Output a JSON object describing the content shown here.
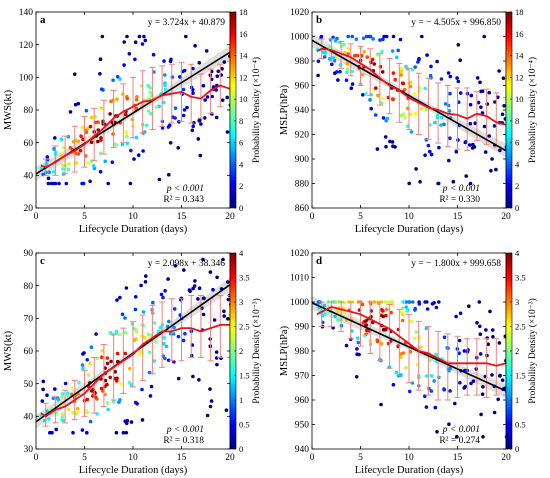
{
  "figure": {
    "colorbar_colors": [
      "#000080",
      "#0000ff",
      "#0080ff",
      "#00ffff",
      "#80ff80",
      "#ffff00",
      "#ff8000",
      "#ff0000",
      "#800000"
    ]
  },
  "chart_data": [
    {
      "panel": "a",
      "type": "scatter",
      "xlabel": "Lifecycle Duration (days)",
      "ylabel": "MWS(kt)",
      "xlim": [
        0,
        20
      ],
      "ylim": [
        20,
        140
      ],
      "xticks": [
        0,
        5,
        10,
        15,
        20
      ],
      "yticks": [
        20,
        40,
        60,
        80,
        100,
        120,
        140
      ],
      "equation": "y = 3.724x + 40.879",
      "pvalue": "p < 0.001",
      "r2": "R² = 0.343",
      "regression": {
        "slope": 3.724,
        "intercept": 40.879
      },
      "mean_line": {
        "x": [
          0.5,
          1,
          2,
          3,
          4,
          5,
          6,
          7,
          8,
          9,
          10,
          11,
          12,
          13,
          14,
          15,
          16,
          17,
          18,
          19,
          20
        ],
        "y": [
          46,
          45,
          48,
          52,
          55,
          59,
          64,
          69,
          75,
          79,
          82,
          85,
          86,
          89,
          90,
          91,
          88,
          87,
          92,
          95,
          93
        ]
      },
      "error_bars": {
        "x": [
          1,
          2,
          3,
          4,
          5,
          6,
          7,
          8,
          9,
          10,
          11,
          12,
          13,
          14,
          15,
          16,
          17,
          18,
          19,
          20
        ],
        "lower": [
          40,
          40,
          41,
          42,
          45,
          49,
          53,
          57,
          60,
          63,
          66,
          68,
          70,
          72,
          73,
          72,
          75,
          78,
          82,
          80
        ],
        "upper": [
          50,
          58,
          64,
          70,
          76,
          81,
          86,
          92,
          96,
          100,
          104,
          106,
          107,
          108,
          109,
          108,
          102,
          105,
          108,
          110
        ]
      },
      "points": {
        "y_min": 35,
        "y_max": 125,
        "x_min": 1,
        "x_max": 20
      },
      "colorbar": {
        "label": "Probability Density (×10⁻⁴)",
        "min": 0,
        "max": 18,
        "ticks": [
          0,
          2,
          4,
          6,
          8,
          10,
          12,
          14,
          16,
          18
        ]
      }
    },
    {
      "panel": "b",
      "type": "scatter",
      "xlabel": "Lifecycle Duration (days)",
      "ylabel": "MSLP(hPa)",
      "xlim": [
        0,
        20
      ],
      "ylim": [
        860,
        1020
      ],
      "xticks": [
        0,
        5,
        10,
        15,
        20
      ],
      "yticks": [
        860,
        880,
        900,
        920,
        940,
        960,
        980,
        1000,
        1020
      ],
      "equation": "y = − 4.505x + 996.850",
      "pvalue": "p < 0.001",
      "r2": "R² = 0.330",
      "regression": {
        "slope": -4.505,
        "intercept": 996.85
      },
      "mean_line": {
        "x": [
          0.5,
          1,
          2,
          3,
          4,
          5,
          6,
          7,
          8,
          9,
          10,
          11,
          12,
          13,
          14,
          15,
          16,
          17,
          18,
          19,
          20
        ],
        "y": [
          988,
          990,
          989,
          986,
          983,
          978,
          973,
          966,
          960,
          956,
          950,
          946,
          942,
          940,
          937,
          936,
          933,
          937,
          935,
          930,
          928
        ]
      },
      "error_bars": {
        "x": [
          1,
          2,
          3,
          4,
          5,
          6,
          7,
          8,
          9,
          10,
          11,
          12,
          13,
          14,
          15,
          16,
          17,
          18,
          19,
          20
        ],
        "lower": [
          982,
          980,
          974,
          968,
          960,
          952,
          944,
          937,
          930,
          924,
          920,
          916,
          913,
          910,
          908,
          907,
          915,
          912,
          910,
          908
        ],
        "upper": [
          998,
          998,
          996,
          994,
          992,
          990,
          986,
          982,
          978,
          974,
          970,
          966,
          962,
          960,
          958,
          958,
          955,
          957,
          954,
          950
        ]
      },
      "points": {
        "y_min": 880,
        "y_max": 1000,
        "x_min": 1,
        "x_max": 20
      },
      "colorbar": {
        "label": "Probability Density (×10⁻⁴)",
        "min": 0,
        "max": 18,
        "ticks": [
          0,
          2,
          4,
          6,
          8,
          10,
          12,
          14,
          16,
          18
        ]
      }
    },
    {
      "panel": "c",
      "type": "scatter",
      "xlabel": "Lifecycle Duration (days)",
      "ylabel": "MWS(kt)",
      "xlim": [
        0,
        20
      ],
      "ylim": [
        30,
        90
      ],
      "xticks": [
        0,
        5,
        10,
        15,
        20
      ],
      "yticks": [
        30,
        40,
        50,
        60,
        70,
        80,
        90
      ],
      "equation": "y = 2.098x + 38.346",
      "pvalue": "p < 0.001",
      "r2": "R² = 0.318",
      "regression": {
        "slope": 2.098,
        "intercept": 38.346
      },
      "mean_line": {
        "x": [
          0.5,
          1,
          2,
          3,
          4,
          5,
          6,
          7,
          8,
          9,
          10,
          11,
          12,
          13,
          14,
          15,
          16,
          17,
          18,
          19,
          20
        ],
        "y": [
          41,
          40,
          42,
          43,
          45,
          47,
          50,
          53,
          55,
          57,
          59,
          62,
          64,
          66,
          66,
          67,
          67,
          66,
          67,
          68,
          68
        ]
      },
      "error_bars": {
        "x": [
          1,
          2,
          3,
          4,
          5,
          6,
          7,
          8,
          9,
          10,
          11,
          12,
          13,
          14,
          15,
          16,
          17,
          18,
          19,
          20
        ],
        "lower": [
          37,
          38,
          38,
          39,
          40,
          41,
          43,
          45,
          47,
          49,
          51,
          53,
          55,
          57,
          57,
          58,
          58,
          57,
          58,
          58
        ],
        "upper": [
          44,
          46,
          48,
          51,
          54,
          58,
          62,
          65,
          67,
          69,
          71,
          74,
          75,
          76,
          76,
          77,
          77,
          76,
          77,
          77
        ]
      },
      "points": {
        "y_min": 35,
        "y_max": 88,
        "x_min": 1,
        "x_max": 20
      },
      "colorbar": {
        "label": "Probability Density (×10⁻³)",
        "min": 0,
        "max": 4,
        "ticks": [
          0,
          0.5,
          1,
          1.5,
          2,
          2.5,
          3,
          3.5,
          4
        ]
      }
    },
    {
      "panel": "d",
      "type": "scatter",
      "xlabel": "Lifecycle Duration (days)",
      "ylabel": "MSLP(hPa)",
      "xlim": [
        0,
        20
      ],
      "ylim": [
        940,
        1020
      ],
      "xticks": [
        0,
        5,
        10,
        15,
        20
      ],
      "yticks": [
        940,
        950,
        960,
        970,
        980,
        990,
        1000,
        1010,
        1020
      ],
      "equation": "y = − 1.800x + 999.658",
      "pvalue": "p < 0.001",
      "r2": "R² = 0.274",
      "regression": {
        "slope": -1.8,
        "intercept": 999.658
      },
      "mean_line": {
        "x": [
          0.5,
          1,
          2,
          3,
          4,
          5,
          6,
          7,
          8,
          9,
          10,
          11,
          12,
          13,
          14,
          15,
          16,
          17,
          18,
          19,
          20
        ],
        "y": [
          995,
          996,
          998,
          997,
          996,
          995,
          993,
          991,
          989,
          986,
          983,
          980,
          979,
          977,
          975,
          975,
          975,
          975,
          975,
          974,
          975
        ]
      },
      "error_bars": {
        "x": [
          1,
          2,
          3,
          4,
          5,
          6,
          7,
          8,
          9,
          10,
          11,
          12,
          13,
          14,
          15,
          16,
          17,
          18,
          19,
          20
        ],
        "lower": [
          990,
          990,
          988,
          985,
          982,
          979,
          976,
          973,
          970,
          967,
          964,
          962,
          960,
          960,
          961,
          962,
          962,
          961,
          962,
          962
        ],
        "upper": [
          1000,
          1000,
          1000,
          1000,
          1000,
          1000,
          1000,
          999,
          997,
          995,
          992,
          990,
          988,
          987,
          986,
          985,
          985,
          985,
          985,
          985
        ]
      },
      "points": {
        "y_min": 945,
        "y_max": 1000,
        "x_min": 1,
        "x_max": 20
      },
      "colorbar": {
        "label": "Probability Density (×10⁻³)",
        "min": 0,
        "max": 4,
        "ticks": [
          0,
          0.5,
          1,
          1.5,
          2,
          2.5,
          3,
          3.5,
          4
        ]
      }
    }
  ]
}
